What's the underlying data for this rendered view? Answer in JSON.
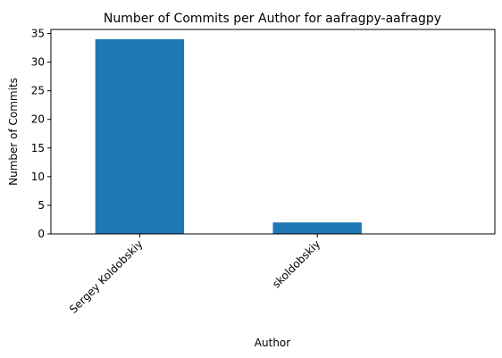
{
  "chart_data": {
    "type": "bar",
    "title": "Number of Commits per Author for aafragpy-aafragpy",
    "xlabel": "Author",
    "ylabel": "Number of Commits",
    "categories": [
      "Sergey Koldobskiy",
      "skoldobskiy"
    ],
    "values": [
      34,
      2
    ],
    "ylim": [
      0,
      35.7
    ],
    "yticks": [
      0,
      5,
      10,
      15,
      20,
      25,
      30,
      35
    ],
    "bar_color": "#1f77b4",
    "grid": false,
    "legend": "none"
  }
}
